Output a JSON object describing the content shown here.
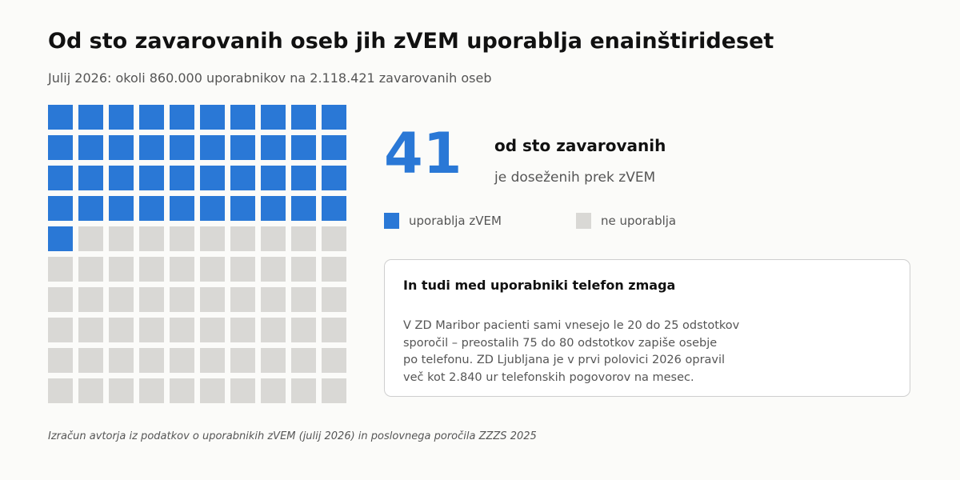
{
  "title": "Od sto zavarovanih oseb jih zVEM uporablja enainštirideset",
  "subtitle": "Julij 2026: okoli 860.000 uporabnikov na 2.118.421 zavarovanih oseb",
  "colors": {
    "active": "#2a78d6",
    "inactive": "#d9d8d5",
    "accent": "#2a78d6"
  },
  "chart_data": {
    "type": "waffle",
    "total": 100,
    "columns": 10,
    "rows": 10,
    "series": [
      {
        "name": "uporablja zVEM",
        "value": 41
      },
      {
        "name": "ne uporablja",
        "value": 59
      }
    ]
  },
  "highlight": {
    "number": "41",
    "label": "od sto zavarovanih",
    "sublabel": "je doseženih prek zVEM"
  },
  "legend": {
    "active_label": "uporablja zVEM",
    "inactive_label": "ne uporablja"
  },
  "card": {
    "title": "In tudi med uporabniki telefon zmaga",
    "lines": [
      "V ZD Maribor pacienti sami vnesejo le 20 do 25 odstotkov",
      "sporočil – preostalih 75 do 80 odstotkov zapiše osebje",
      "po telefonu. ZD Ljubljana je v prvi polovici 2026 opravil",
      "več kot 2.840 ur telefonskih pogovorov na mesec."
    ]
  },
  "source": "Izračun avtorja iz podatkov o uporabnikih zVEM (julij 2026) in poslovnega poročila ZZZS 2025"
}
